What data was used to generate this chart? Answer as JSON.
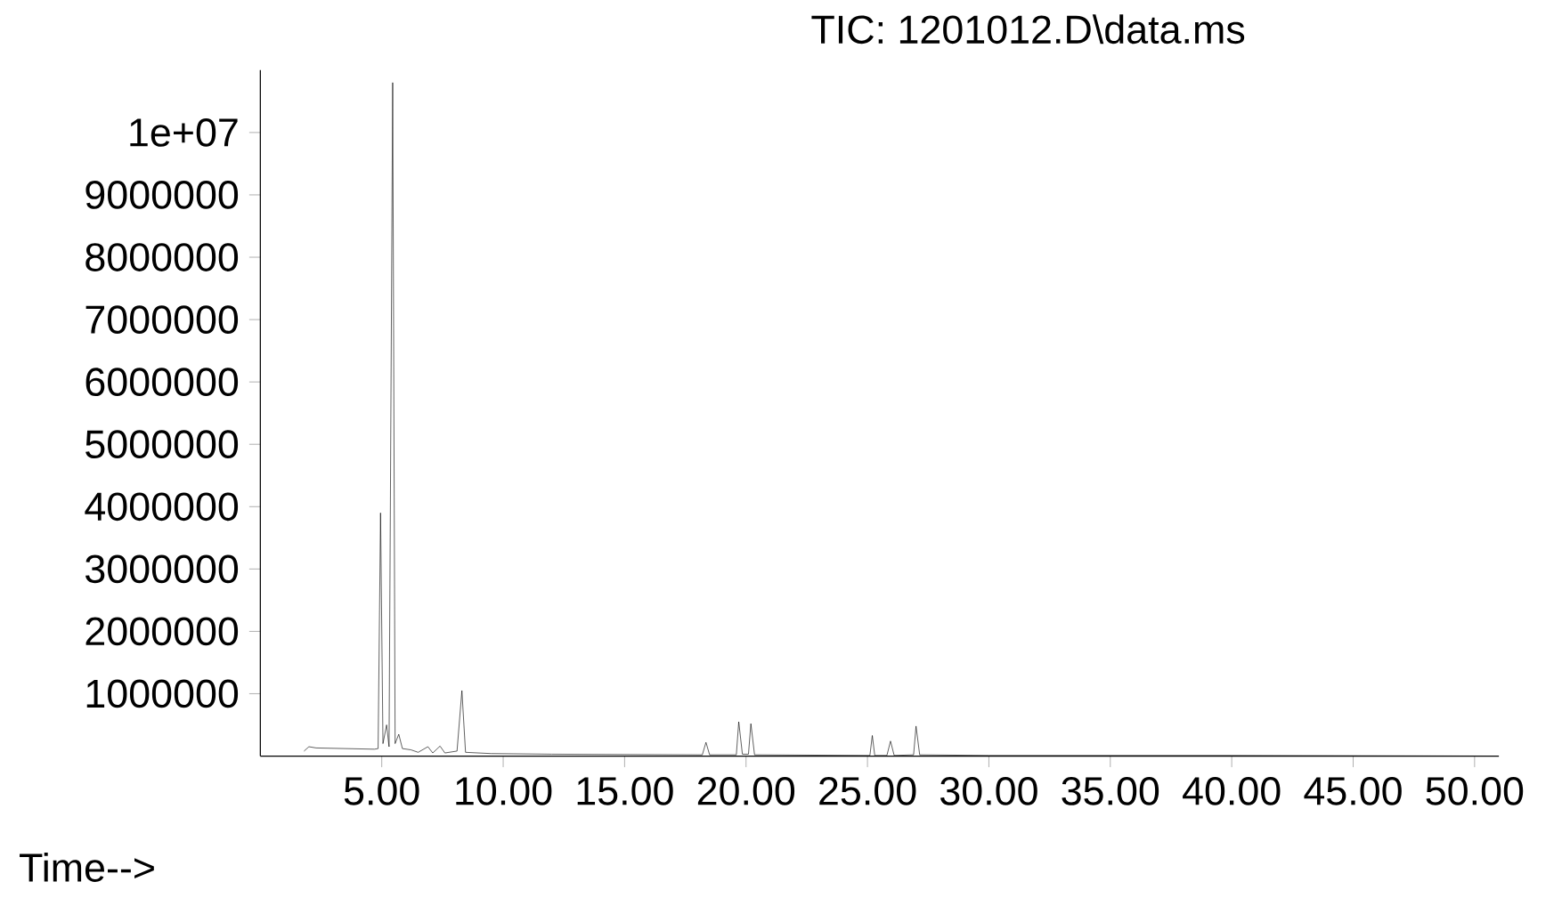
{
  "chart_data": {
    "type": "line",
    "title": "TIC: 1201012.D\\data.ms",
    "xlabel": "Time-->",
    "x": [
      1.8,
      2.0,
      2.3,
      4.7,
      4.85,
      4.95,
      5.05,
      5.2,
      5.3,
      5.45,
      5.55,
      5.7,
      5.85,
      6.2,
      6.5,
      6.9,
      7.1,
      7.4,
      7.6,
      8.1,
      8.3,
      8.45,
      9.5,
      12,
      18.2,
      18.35,
      18.5,
      19.6,
      19.7,
      19.85,
      20.1,
      20.2,
      20.35,
      25.1,
      25.2,
      25.3,
      25.8,
      25.95,
      26.1,
      26.9,
      27.0,
      27.15,
      30,
      40,
      51
    ],
    "values": [
      80000,
      150000,
      130000,
      110000,
      120000,
      3900000,
      200000,
      500000,
      150000,
      10800000,
      200000,
      350000,
      120000,
      100000,
      60000,
      150000,
      50000,
      160000,
      50000,
      80000,
      1050000,
      60000,
      40000,
      30000,
      20000,
      220000,
      20000,
      20000,
      550000,
      30000,
      30000,
      520000,
      20000,
      10000,
      330000,
      10000,
      10000,
      240000,
      10000,
      20000,
      480000,
      20000,
      10000,
      10000,
      0
    ],
    "color": "#000000",
    "xlim": [
      0,
      51
    ],
    "ylim": [
      0,
      11000000
    ],
    "xticks": [
      {
        "value": 5,
        "label": "5.00"
      },
      {
        "value": 10,
        "label": "10.00"
      },
      {
        "value": 15,
        "label": "15.00"
      },
      {
        "value": 20,
        "label": "20.00"
      },
      {
        "value": 25,
        "label": "25.00"
      },
      {
        "value": 30,
        "label": "30.00"
      },
      {
        "value": 35,
        "label": "35.00"
      },
      {
        "value": 40,
        "label": "40.00"
      },
      {
        "value": 45,
        "label": "45.00"
      },
      {
        "value": 50,
        "label": "50.00"
      }
    ],
    "yticks": [
      1000000,
      2000000,
      3000000,
      4000000,
      5000000,
      6000000,
      7000000,
      8000000,
      9000000,
      {
        "value": 10000000,
        "label": "1e+07"
      }
    ],
    "marker": "none",
    "line_style": "solid"
  }
}
